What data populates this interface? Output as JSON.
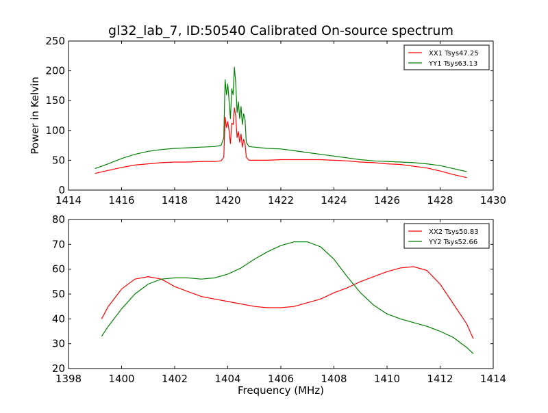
{
  "figure": {
    "title": "gl32_lab_7, ID:50540 Calibrated On-source spectrum",
    "xlabel": "Frequency (MHz)"
  },
  "chart_data": [
    {
      "type": "line",
      "title": "gl32_lab_7, ID:50540 Calibrated On-source spectrum",
      "ylabel": "Power in Kelvin",
      "xlim": [
        1414,
        1430
      ],
      "ylim": [
        0,
        250
      ],
      "xticks": [
        1414,
        1416,
        1418,
        1420,
        1422,
        1424,
        1426,
        1428,
        1430
      ],
      "yticks": [
        0,
        50,
        100,
        150,
        200,
        250
      ],
      "grid": false,
      "legend_position": "top-right",
      "series": [
        {
          "name": "XX1 Tsys47.25",
          "color": "#ff0000",
          "x": [
            1415.0,
            1415.5,
            1416.0,
            1416.5,
            1417.0,
            1417.5,
            1418.0,
            1418.5,
            1419.0,
            1419.5,
            1419.75,
            1419.85,
            1419.9,
            1419.95,
            1420.0,
            1420.05,
            1420.1,
            1420.15,
            1420.2,
            1420.25,
            1420.3,
            1420.35,
            1420.4,
            1420.45,
            1420.5,
            1420.55,
            1420.6,
            1420.65,
            1420.7,
            1420.8,
            1421.0,
            1421.5,
            1422.0,
            1422.5,
            1423.0,
            1423.5,
            1424.0,
            1424.5,
            1425.0,
            1425.5,
            1426.0,
            1426.5,
            1427.0,
            1427.5,
            1428.0,
            1428.5,
            1429.0
          ],
          "y": [
            28,
            33,
            38,
            42,
            44,
            46,
            47,
            47,
            48,
            48,
            49,
            55,
            122,
            105,
            115,
            100,
            78,
            112,
            110,
            138,
            125,
            88,
            98,
            80,
            94,
            72,
            85,
            78,
            55,
            50,
            50,
            50,
            51,
            51,
            51,
            51,
            50,
            49,
            47,
            46,
            44,
            43,
            40,
            37,
            32,
            26,
            21
          ]
        },
        {
          "name": "YY1 Tsys63.13",
          "color": "#008000",
          "x": [
            1415.0,
            1415.5,
            1416.0,
            1416.5,
            1417.0,
            1417.5,
            1418.0,
            1418.5,
            1419.0,
            1419.5,
            1419.75,
            1419.85,
            1419.9,
            1419.95,
            1420.0,
            1420.05,
            1420.1,
            1420.15,
            1420.2,
            1420.25,
            1420.3,
            1420.35,
            1420.4,
            1420.45,
            1420.5,
            1420.55,
            1420.6,
            1420.65,
            1420.7,
            1420.8,
            1421.0,
            1421.5,
            1422.0,
            1422.5,
            1423.0,
            1423.5,
            1424.0,
            1424.5,
            1425.0,
            1425.5,
            1426.0,
            1426.5,
            1427.0,
            1427.5,
            1428.0,
            1428.5,
            1429.0
          ],
          "y": [
            36,
            44,
            53,
            60,
            65,
            68,
            70,
            71,
            72,
            73,
            75,
            88,
            185,
            160,
            178,
            150,
            120,
            170,
            160,
            206,
            180,
            130,
            148,
            120,
            140,
            110,
            128,
            118,
            80,
            73,
            72,
            70,
            69,
            66,
            63,
            60,
            57,
            54,
            51,
            49,
            48,
            47,
            46,
            44,
            41,
            36,
            31
          ]
        }
      ]
    },
    {
      "type": "line",
      "xlabel": "Frequency (MHz)",
      "xlim": [
        1398,
        1414
      ],
      "ylim": [
        20,
        80
      ],
      "xticks": [
        1398,
        1400,
        1402,
        1404,
        1406,
        1408,
        1410,
        1412,
        1414
      ],
      "yticks": [
        20,
        30,
        40,
        50,
        60,
        70,
        80
      ],
      "grid": false,
      "legend_position": "top-right",
      "series": [
        {
          "name": "XX2 Tsys50.83",
          "color": "#ff0000",
          "x": [
            1399.25,
            1399.5,
            1400.0,
            1400.5,
            1401.0,
            1401.5,
            1402.0,
            1402.5,
            1403.0,
            1403.5,
            1404.0,
            1404.5,
            1405.0,
            1405.5,
            1406.0,
            1406.5,
            1407.0,
            1407.5,
            1408.0,
            1408.5,
            1409.0,
            1409.5,
            1410.0,
            1410.5,
            1411.0,
            1411.5,
            1412.0,
            1412.5,
            1413.0,
            1413.25
          ],
          "y": [
            40,
            45,
            52,
            56,
            57,
            56,
            53,
            51,
            49,
            48,
            47,
            46,
            45,
            44.5,
            44.5,
            45,
            46.5,
            48,
            50.5,
            52.5,
            55,
            57,
            59,
            60.5,
            61,
            59.5,
            54,
            46,
            38,
            32
          ]
        },
        {
          "name": "YY2 Tsys52.66",
          "color": "#008000",
          "x": [
            1399.25,
            1399.5,
            1400.0,
            1400.5,
            1401.0,
            1401.5,
            1402.0,
            1402.5,
            1403.0,
            1403.5,
            1404.0,
            1404.5,
            1405.0,
            1405.5,
            1406.0,
            1406.5,
            1407.0,
            1407.5,
            1408.0,
            1408.5,
            1409.0,
            1409.5,
            1410.0,
            1410.5,
            1411.0,
            1411.5,
            1412.0,
            1412.5,
            1413.0,
            1413.25
          ],
          "y": [
            33,
            37,
            44,
            50,
            54,
            56,
            56.5,
            56.5,
            56,
            56.5,
            58,
            60.5,
            64,
            67,
            69.5,
            71,
            71,
            69,
            64,
            57,
            50.5,
            45.5,
            42,
            40,
            38.5,
            37,
            35,
            32.5,
            28.5,
            26
          ]
        }
      ]
    }
  ]
}
